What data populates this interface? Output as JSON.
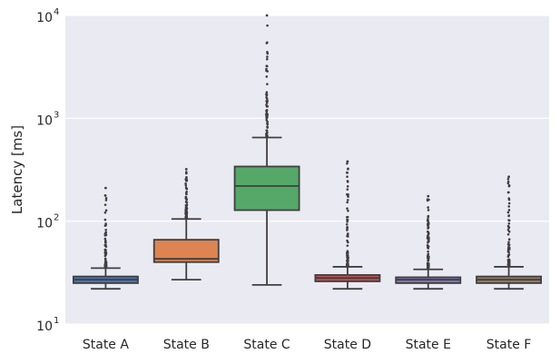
{
  "chart_data": {
    "type": "box",
    "title": "",
    "xlabel": "",
    "ylabel": "Latency [ms]",
    "yscale": "log",
    "ylim": [
      10,
      10000
    ],
    "yticks": [
      {
        "value": 10,
        "base": "10",
        "exp": "1"
      },
      {
        "value": 100,
        "base": "10",
        "exp": "2"
      },
      {
        "value": 1000,
        "base": "10",
        "exp": "3"
      },
      {
        "value": 10000,
        "base": "10",
        "exp": "4"
      }
    ],
    "grid": true,
    "background": "#eaeaf2",
    "categories": [
      "State A",
      "State B",
      "State C",
      "State D",
      "State E",
      "State F"
    ],
    "colors": [
      "#4c72b0",
      "#dd8452",
      "#55a868",
      "#c44e52",
      "#8172b3",
      "#937860"
    ],
    "boxes": [
      {
        "name": "State A",
        "whisker_low": 22,
        "q1": 25,
        "median": 27,
        "q3": 29,
        "whisker_high": 35,
        "outlier_max": 210
      },
      {
        "name": "State B",
        "whisker_low": 27,
        "q1": 40,
        "median": 43,
        "q3": 66,
        "whisker_high": 105,
        "outlier_max": 320
      },
      {
        "name": "State C",
        "whisker_low": 24,
        "q1": 128,
        "median": 220,
        "q3": 340,
        "whisker_high": 650,
        "outlier_max": 10000
      },
      {
        "name": "State D",
        "whisker_low": 22,
        "q1": 26,
        "median": 28,
        "q3": 30,
        "whisker_high": 36,
        "outlier_max": 380
      },
      {
        "name": "State E",
        "whisker_low": 22,
        "q1": 25,
        "median": 27,
        "q3": 28.5,
        "whisker_high": 34,
        "outlier_max": 175
      },
      {
        "name": "State F",
        "whisker_low": 22,
        "q1": 25,
        "median": 27,
        "q3": 29,
        "whisker_high": 36,
        "outlier_max": 270
      }
    ]
  }
}
